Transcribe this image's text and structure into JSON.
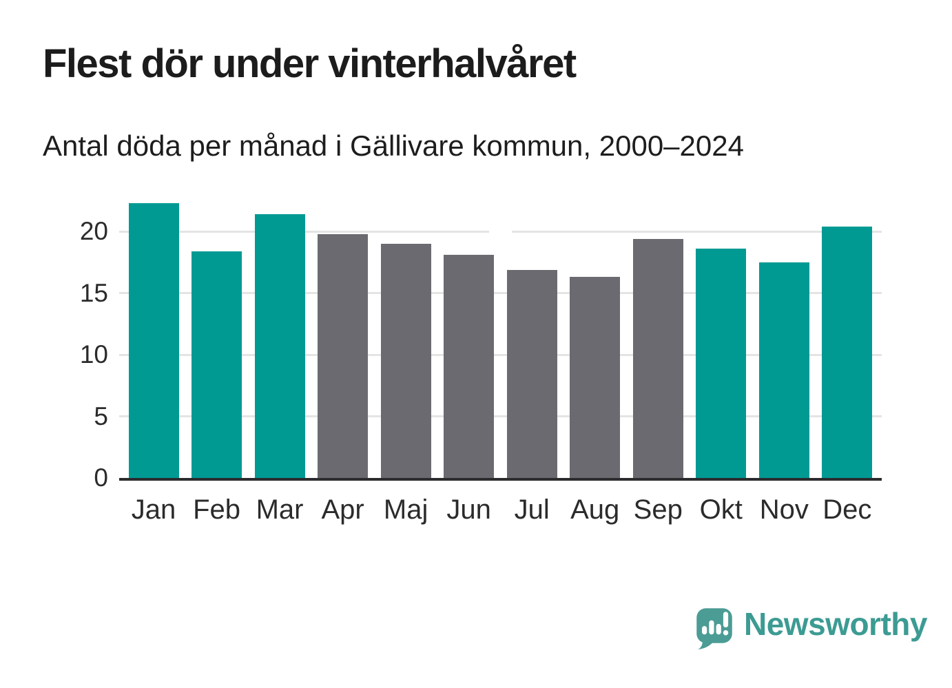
{
  "chart_data": {
    "type": "bar",
    "title": "Flest dör under vinterhalvåret",
    "subtitle": "Antal döda per månad i Gällivare kommun, 2000–2024",
    "categories": [
      "Jan",
      "Feb",
      "Mar",
      "Apr",
      "Maj",
      "Jun",
      "Jul",
      "Aug",
      "Sep",
      "Okt",
      "Nov",
      "Dec"
    ],
    "values": [
      22.3,
      18.4,
      21.4,
      19.8,
      19.0,
      18.1,
      16.9,
      16.3,
      19.4,
      18.6,
      17.5,
      20.4
    ],
    "bar_colors": [
      "#009a93",
      "#009a93",
      "#009a93",
      "#6a6a70",
      "#6a6a70",
      "#6a6a70",
      "#6a6a70",
      "#6a6a70",
      "#6a6a70",
      "#009a93",
      "#009a93",
      "#009a93"
    ],
    "accent_color": "#009a93",
    "muted_color": "#6a6a70",
    "xlabel": "",
    "ylabel": "",
    "yticks": [
      0,
      5,
      10,
      15,
      20
    ],
    "ylim": [
      0,
      22.9
    ],
    "grid": "horizontal",
    "legend_position": "none"
  },
  "footer": {
    "brand": "Newsworthy",
    "logo_icon": "newsworthy-speech-bubble-bar-chart-icon",
    "brand_color": "#3c9b93",
    "logo_bubble_color": "#4b9c95"
  }
}
